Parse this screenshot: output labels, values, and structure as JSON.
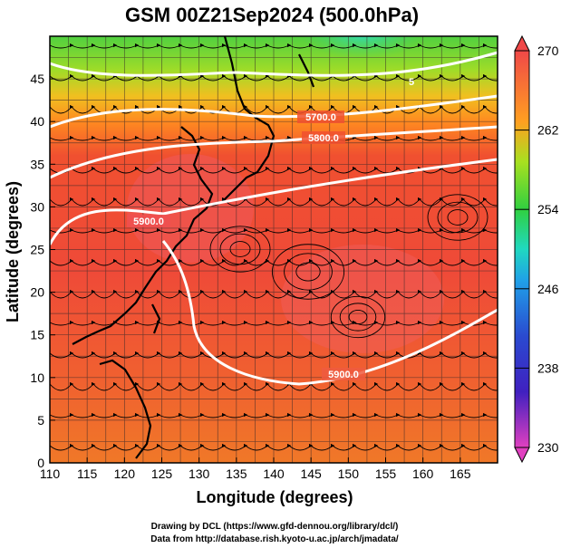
{
  "title": "GSM 00Z21Sep2024 (500.0hPa)",
  "xlabel": "Longitude (degrees)",
  "ylabel": "Latitude  (degrees)",
  "credits": [
    "Drawing by DCL (https://www.gfd-dennou.org/library/dcl/)",
    "Data from http://database.rish.kyoto-u.ac.jp/arch/jmadata/"
  ],
  "map": {
    "lon_range": [
      110,
      170
    ],
    "lat_range": [
      0,
      50
    ],
    "x_ticks": [
      "110",
      "115",
      "120",
      "125",
      "130",
      "135",
      "140",
      "145",
      "150",
      "155",
      "160",
      "165"
    ],
    "y_ticks": [
      "0",
      "5",
      "10",
      "15",
      "20",
      "25",
      "30",
      "35",
      "40",
      "45"
    ],
    "variable": "temperature shading (K) with geopotential height contours and wind streamlines",
    "colorbar": {
      "min": 230,
      "max": 270,
      "ticks": [
        "270",
        "262",
        "254",
        "246",
        "238",
        "230"
      ],
      "colors": [
        "#e040c0",
        "#3030c0",
        "#2090e0",
        "#20d0d0",
        "#40d040",
        "#c0e020",
        "#ff9020",
        "#f04040"
      ]
    },
    "contours": [
      {
        "label": "5700.0"
      },
      {
        "label": "5800.0"
      },
      {
        "label": "5900.0"
      },
      {
        "label": "5900.0"
      }
    ],
    "contour_label_partial": "5"
  }
}
